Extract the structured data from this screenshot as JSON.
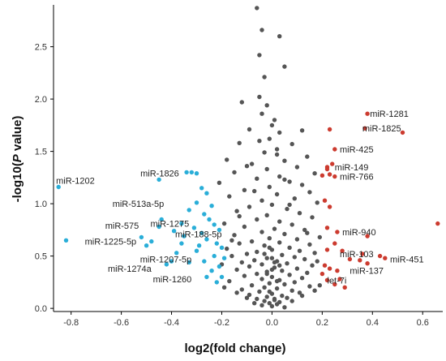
{
  "chart_data": {
    "type": "scatter",
    "xlabel": "log2(fold change)",
    "ylabel_parts": [
      "-log10(",
      "P",
      " value)"
    ],
    "xlim": [
      -0.87,
      0.68
    ],
    "ylim": [
      -0.03,
      2.9
    ],
    "xticks": [
      "-0.8",
      "-0.6",
      "-0.4",
      "-0.2",
      "0.0",
      "0.2",
      "0.4",
      "0.6"
    ],
    "xtick_values": [
      -0.8,
      -0.6,
      -0.4,
      -0.2,
      0.0,
      0.2,
      0.4,
      0.6
    ],
    "yticks": [
      "0.0",
      "0.5",
      "1.0",
      "1.5",
      "2.0",
      "2.5"
    ],
    "ytick_values": [
      0.0,
      0.5,
      1.0,
      1.5,
      2.0,
      2.5
    ],
    "colors": {
      "up": "#cc3b2f",
      "down": "#2aaed8",
      "ns": "#555555"
    },
    "series": [
      {
        "group": "down",
        "points": [
          [
            -0.85,
            1.16
          ],
          [
            -0.82,
            0.65
          ],
          [
            -0.45,
            1.23
          ],
          [
            -0.34,
            1.3
          ],
          [
            -0.32,
            1.3
          ],
          [
            -0.3,
            1.29
          ],
          [
            -0.28,
            1.15
          ],
          [
            -0.26,
            1.1
          ],
          [
            -0.3,
            1.01
          ],
          [
            -0.27,
            0.9
          ],
          [
            -0.24,
            0.98
          ],
          [
            -0.25,
            0.85
          ],
          [
            -0.23,
            0.8
          ],
          [
            -0.21,
            0.75
          ],
          [
            -0.22,
            0.62
          ],
          [
            -0.26,
            0.66
          ],
          [
            -0.29,
            0.6
          ],
          [
            -0.3,
            0.55
          ],
          [
            -0.27,
            0.45
          ],
          [
            -0.23,
            0.5
          ],
          [
            -0.21,
            0.4
          ],
          [
            -0.24,
            0.36
          ],
          [
            -0.2,
            0.3
          ],
          [
            -0.26,
            0.3
          ],
          [
            -0.22,
            0.25
          ],
          [
            -0.19,
            0.48
          ],
          [
            -0.2,
            0.58
          ],
          [
            -0.36,
            0.62
          ],
          [
            -0.38,
            0.53
          ],
          [
            -0.33,
            0.44
          ],
          [
            -0.4,
            0.45
          ],
          [
            -0.42,
            0.42
          ],
          [
            -0.52,
            0.68
          ],
          [
            -0.48,
            0.64
          ],
          [
            -0.5,
            0.6
          ],
          [
            -0.45,
            0.78
          ],
          [
            -0.44,
            0.85
          ],
          [
            -0.39,
            0.74
          ],
          [
            -0.36,
            0.81
          ],
          [
            -0.33,
            0.94
          ],
          [
            -0.28,
            0.72
          ],
          [
            -0.31,
            0.77
          ],
          [
            -0.35,
            0.69
          ]
        ]
      },
      {
        "group": "up",
        "points": [
          [
            0.38,
            1.86
          ],
          [
            0.37,
            1.72
          ],
          [
            0.52,
            1.68
          ],
          [
            0.23,
            1.71
          ],
          [
            0.25,
            1.52
          ],
          [
            0.22,
            1.35
          ],
          [
            0.24,
            1.38
          ],
          [
            0.22,
            1.33
          ],
          [
            0.23,
            1.28
          ],
          [
            0.25,
            1.26
          ],
          [
            0.2,
            1.27
          ],
          [
            0.21,
            1.03
          ],
          [
            0.23,
            0.97
          ],
          [
            0.66,
            0.81
          ],
          [
            0.22,
            0.77
          ],
          [
            0.26,
            0.73
          ],
          [
            0.38,
            0.69
          ],
          [
            0.25,
            0.62
          ],
          [
            0.22,
            0.56
          ],
          [
            0.28,
            0.55
          ],
          [
            0.36,
            0.52
          ],
          [
            0.43,
            0.5
          ],
          [
            0.45,
            0.48
          ],
          [
            0.31,
            0.47
          ],
          [
            0.35,
            0.46
          ],
          [
            0.38,
            0.43
          ],
          [
            0.21,
            0.41
          ],
          [
            0.23,
            0.38
          ],
          [
            0.26,
            0.36
          ],
          [
            0.2,
            0.33
          ],
          [
            0.27,
            0.28
          ],
          [
            0.22,
            0.27
          ],
          [
            0.29,
            0.2
          ],
          [
            0.25,
            0.23
          ]
        ]
      },
      {
        "group": "ns",
        "points": [
          [
            -0.06,
            2.87
          ],
          [
            -0.04,
            2.66
          ],
          [
            0.03,
            2.6
          ],
          [
            -0.05,
            2.42
          ],
          [
            0.05,
            2.31
          ],
          [
            -0.03,
            2.21
          ],
          [
            -0.05,
            2.02
          ],
          [
            -0.12,
            1.97
          ],
          [
            -0.02,
            1.94
          ],
          [
            -0.04,
            1.86
          ],
          [
            0.0,
            1.75
          ],
          [
            -0.09,
            1.71
          ],
          [
            0.03,
            1.68
          ],
          [
            0.12,
            1.7
          ],
          [
            -0.01,
            1.62
          ],
          [
            0.08,
            1.57
          ],
          [
            -0.13,
            1.58
          ],
          [
            0.02,
            1.52
          ],
          [
            -0.03,
            1.49
          ],
          [
            0.14,
            1.45
          ],
          [
            -0.18,
            1.42
          ],
          [
            0.05,
            1.41
          ],
          [
            -0.08,
            1.38
          ],
          [
            0.1,
            1.35
          ],
          [
            -0.02,
            1.33
          ],
          [
            -0.15,
            1.3
          ],
          [
            0.17,
            1.29
          ],
          [
            0.03,
            1.26
          ],
          [
            -0.06,
            1.24
          ],
          [
            0.07,
            1.21
          ],
          [
            -0.21,
            1.2
          ],
          [
            0.12,
            1.18
          ],
          [
            -0.01,
            1.16
          ],
          [
            -0.11,
            1.13
          ],
          [
            0.15,
            1.11
          ],
          [
            0.02,
            1.09
          ],
          [
            -0.17,
            1.07
          ],
          [
            0.09,
            1.05
          ],
          [
            -0.04,
            1.03
          ],
          [
            0.18,
            1.01
          ],
          [
            0.0,
            0.99
          ],
          [
            -0.09,
            0.97
          ],
          [
            0.06,
            0.95
          ],
          [
            -0.14,
            0.93
          ],
          [
            0.11,
            0.91
          ],
          [
            -0.02,
            0.89
          ],
          [
            0.16,
            0.87
          ],
          [
            -0.06,
            0.85
          ],
          [
            0.03,
            0.83
          ],
          [
            -0.19,
            0.81
          ],
          [
            0.08,
            0.8
          ],
          [
            -0.11,
            0.78
          ],
          [
            0.01,
            0.76
          ],
          [
            0.13,
            0.75
          ],
          [
            -0.04,
            0.73
          ],
          [
            0.05,
            0.71
          ],
          [
            -0.15,
            0.7
          ],
          [
            0.19,
            0.68
          ],
          [
            -0.01,
            0.67
          ],
          [
            0.1,
            0.66
          ],
          [
            -0.08,
            0.64
          ],
          [
            0.03,
            0.63
          ],
          [
            -0.13,
            0.62
          ],
          [
            0.15,
            0.61
          ],
          [
            -0.03,
            0.6
          ],
          [
            0.07,
            0.58
          ],
          [
            -0.18,
            0.57
          ],
          [
            0.0,
            0.56
          ],
          [
            0.11,
            0.55
          ],
          [
            -0.06,
            0.54
          ],
          [
            0.17,
            0.53
          ],
          [
            -0.1,
            0.52
          ],
          [
            0.04,
            0.51
          ],
          [
            -0.16,
            0.5
          ],
          [
            0.09,
            0.49
          ],
          [
            -0.02,
            0.48
          ],
          [
            0.13,
            0.47
          ],
          [
            -0.07,
            0.46
          ],
          [
            0.02,
            0.45
          ],
          [
            -0.12,
            0.44
          ],
          [
            0.06,
            0.43
          ],
          [
            -0.04,
            0.42
          ],
          [
            0.16,
            0.41
          ],
          [
            -0.09,
            0.4
          ],
          [
            0.01,
            0.39
          ],
          [
            0.1,
            0.38
          ],
          [
            -0.14,
            0.37
          ],
          [
            0.04,
            0.36
          ],
          [
            -0.02,
            0.35
          ],
          [
            0.14,
            0.34
          ],
          [
            -0.06,
            0.33
          ],
          [
            0.07,
            0.32
          ],
          [
            -0.11,
            0.31
          ],
          [
            0.0,
            0.3
          ],
          [
            0.12,
            0.29
          ],
          [
            -0.04,
            0.28
          ],
          [
            0.03,
            0.27
          ],
          [
            -0.17,
            0.26
          ],
          [
            0.09,
            0.25
          ],
          [
            -0.01,
            0.24
          ],
          [
            0.05,
            0.23
          ],
          [
            -0.08,
            0.22
          ],
          [
            0.15,
            0.21
          ],
          [
            -0.03,
            0.2
          ],
          [
            0.02,
            0.19
          ],
          [
            -0.12,
            0.18
          ],
          [
            0.08,
            0.17
          ],
          [
            -0.05,
            0.16
          ],
          [
            0.11,
            0.15
          ],
          [
            0.0,
            0.14
          ],
          [
            -0.09,
            0.13
          ],
          [
            0.04,
            0.12
          ],
          [
            -0.02,
            0.11
          ],
          [
            0.06,
            0.1
          ],
          [
            -0.06,
            0.09
          ],
          [
            0.01,
            0.08
          ],
          [
            -0.03,
            0.07
          ],
          [
            0.03,
            0.06
          ],
          [
            -0.01,
            0.05
          ],
          [
            0.02,
            0.04
          ],
          [
            -0.04,
            0.03
          ],
          [
            0.0,
            0.02
          ],
          [
            0.05,
            0.01
          ],
          [
            -0.07,
            0.05
          ],
          [
            0.08,
            0.07
          ],
          [
            -0.1,
            0.1
          ],
          [
            0.12,
            0.12
          ],
          [
            -0.14,
            0.15
          ],
          [
            0.17,
            0.17
          ],
          [
            -0.19,
            0.2
          ],
          [
            0.19,
            0.22
          ],
          [
            -0.2,
            0.42
          ],
          [
            0.18,
            0.45
          ],
          [
            -0.16,
            0.65
          ],
          [
            0.14,
            0.72
          ],
          [
            -0.13,
            0.88
          ],
          [
            0.07,
            0.99
          ],
          [
            -0.07,
            1.12
          ],
          [
            0.05,
            1.23
          ],
          [
            -0.1,
            1.36
          ],
          [
            0.02,
            1.47
          ],
          [
            -0.05,
            1.6
          ],
          [
            0.01,
            1.8
          ],
          [
            -0.01,
            0.58
          ],
          [
            0.01,
            0.44
          ],
          [
            -0.02,
            0.33
          ],
          [
            0.02,
            0.26
          ],
          [
            -0.01,
            0.16
          ],
          [
            0.01,
            0.09
          ],
          [
            0.0,
            0.48
          ],
          [
            0.0,
            0.37
          ],
          [
            -0.03,
            0.52
          ],
          [
            0.03,
            0.41
          ]
        ]
      }
    ],
    "annotations": [
      {
        "text": "miR-1281",
        "x": 0.39,
        "y": 1.86,
        "anchor": "start"
      },
      {
        "text": "miR-1825",
        "x": 0.36,
        "y": 1.72,
        "anchor": "start"
      },
      {
        "text": "miR-425",
        "x": 0.27,
        "y": 1.52,
        "anchor": "start"
      },
      {
        "text": "miR-149",
        "x": 0.25,
        "y": 1.35,
        "anchor": "start"
      },
      {
        "text": "miR-766",
        "x": 0.27,
        "y": 1.26,
        "anchor": "start"
      },
      {
        "text": "miR-940",
        "x": 0.28,
        "y": 0.73,
        "anchor": "start"
      },
      {
        "text": "miR-103",
        "x": 0.27,
        "y": 0.52,
        "anchor": "start"
      },
      {
        "text": "miR-451",
        "x": 0.47,
        "y": 0.47,
        "anchor": "start"
      },
      {
        "text": "miR-137",
        "x": 0.31,
        "y": 0.36,
        "anchor": "start"
      },
      {
        "text": "let-7i",
        "x": 0.22,
        "y": 0.27,
        "anchor": "start"
      },
      {
        "text": "miR-1202",
        "x": -0.86,
        "y": 1.22,
        "anchor": "start"
      },
      {
        "text": "miR-1826",
        "x": -0.37,
        "y": 1.29,
        "anchor": "end"
      },
      {
        "text": "miR-513a-5p",
        "x": -0.43,
        "y": 1.0,
        "anchor": "end"
      },
      {
        "text": "miR-1275",
        "x": -0.33,
        "y": 0.81,
        "anchor": "end"
      },
      {
        "text": "miR-575",
        "x": -0.53,
        "y": 0.79,
        "anchor": "end"
      },
      {
        "text": "miR-188-5p",
        "x": -0.2,
        "y": 0.71,
        "anchor": "end"
      },
      {
        "text": "miR-1225-5p",
        "x": -0.54,
        "y": 0.64,
        "anchor": "end"
      },
      {
        "text": "miR-1207-5p",
        "x": -0.32,
        "y": 0.47,
        "anchor": "end"
      },
      {
        "text": "miR-1274a",
        "x": -0.48,
        "y": 0.38,
        "anchor": "end"
      },
      {
        "text": "miR-1260",
        "x": -0.32,
        "y": 0.28,
        "anchor": "end"
      }
    ]
  }
}
